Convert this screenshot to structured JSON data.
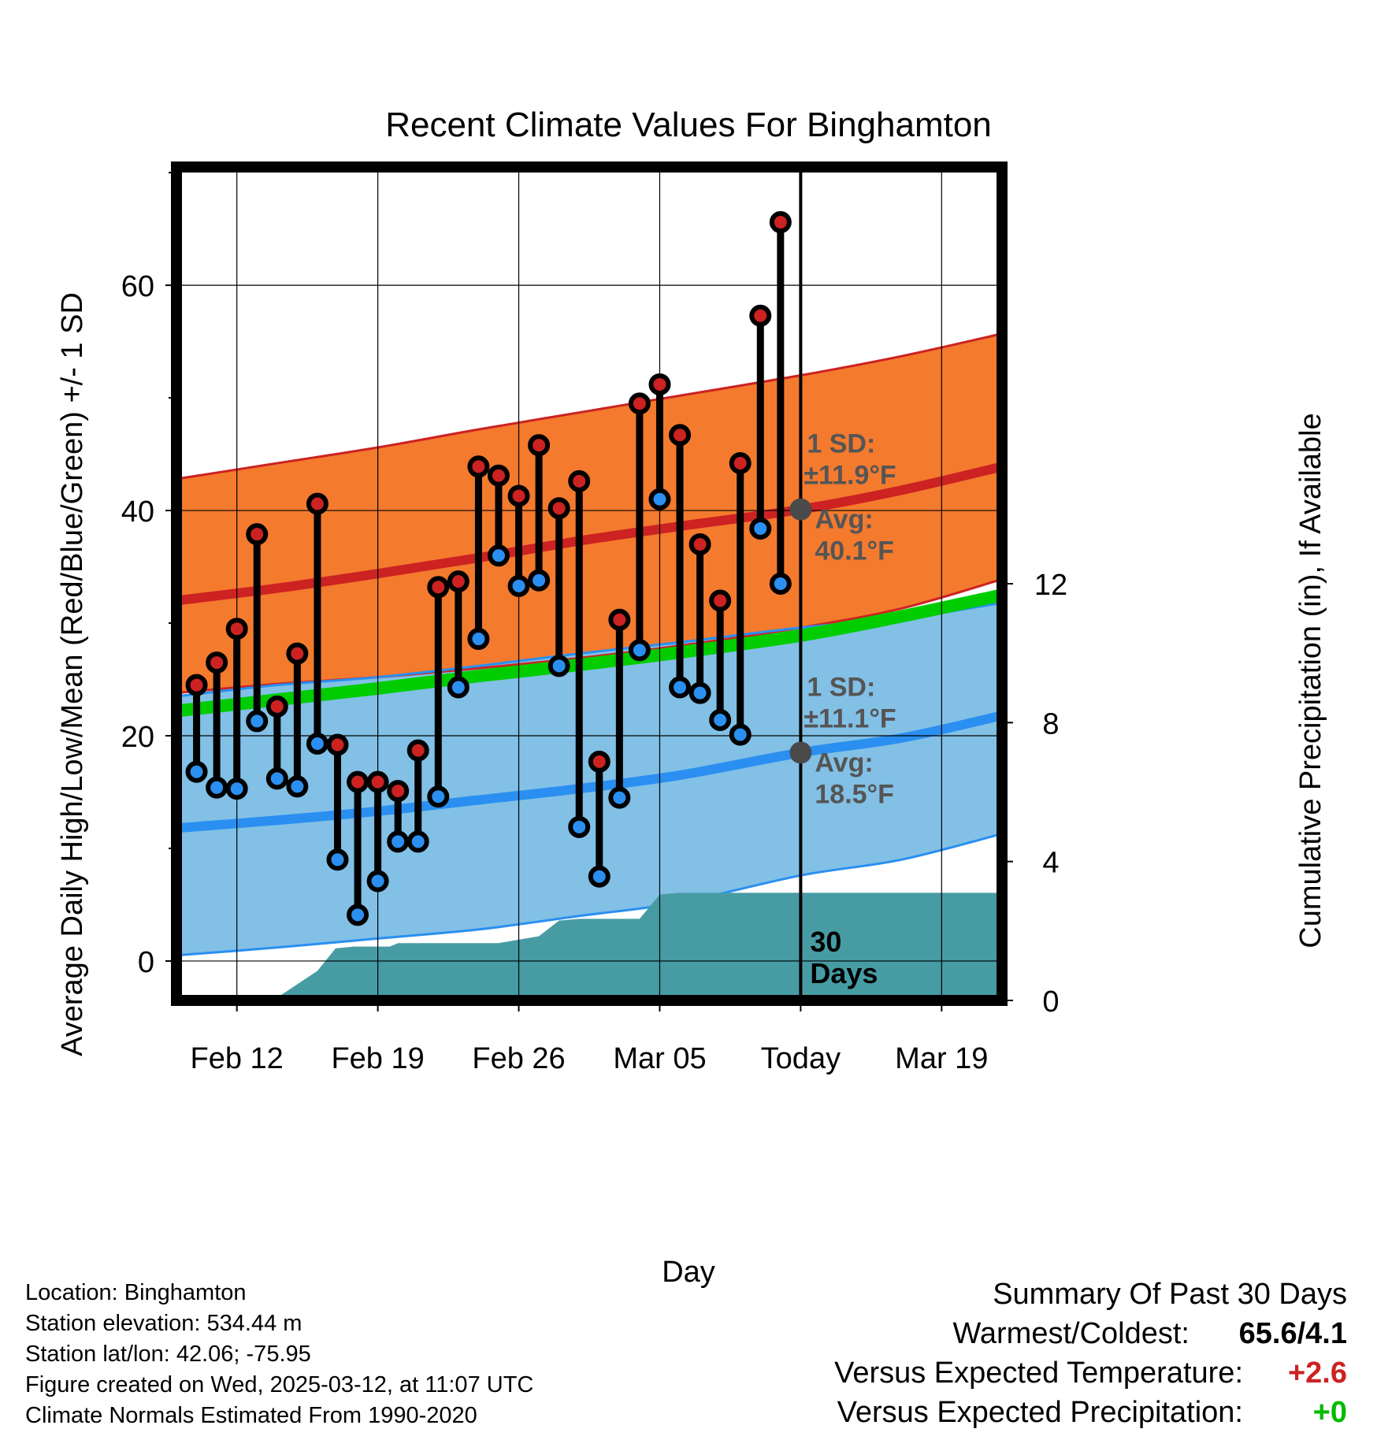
{
  "chart_data": {
    "type": "line",
    "title": "Recent Climate Values For Binghamton",
    "xlabel": "Day",
    "ylabel": "Average Daily High/Low/Mean (Red/Blue/Green) +/- 1 SD",
    "y2label": "Cumulative Precipitation (in), If Available",
    "ylim": [
      -3.5,
      70.5
    ],
    "y_ticks": [
      0,
      20,
      40,
      60
    ],
    "y_minor_ticks": [
      10,
      30,
      50,
      70
    ],
    "y2lim": [
      0,
      24
    ],
    "y2_ticks": [
      0,
      4,
      8,
      12
    ],
    "xlim": [
      0,
      41
    ],
    "x_ticks": [
      {
        "day": 3,
        "label": "Feb 12"
      },
      {
        "day": 10,
        "label": "Feb 19"
      },
      {
        "day": 17,
        "label": "Feb 26"
      },
      {
        "day": 24,
        "label": "Mar 05"
      },
      {
        "day": 31,
        "label": "Today"
      },
      {
        "day": 38,
        "label": "Mar 19"
      }
    ],
    "today_day": 31,
    "today_label": "30 Days",
    "grid": true,
    "normals": {
      "day": [
        0,
        5,
        10,
        15,
        20,
        25,
        31,
        36,
        41
      ],
      "high_avg": [
        32.0,
        33.1,
        34.4,
        35.8,
        37.3,
        38.6,
        40.1,
        41.8,
        43.9
      ],
      "high_upper": [
        42.8,
        44.2,
        45.6,
        47.2,
        48.7,
        50.2,
        52.0,
        53.7,
        55.7
      ],
      "high_lower": [
        23.8,
        24.6,
        25.2,
        26.0,
        26.9,
        28.0,
        29.6,
        31.3,
        33.9
      ],
      "mean_avg": [
        22.2,
        23.2,
        24.2,
        25.3,
        26.3,
        27.4,
        28.9,
        30.6,
        32.5
      ],
      "low_avg": [
        11.8,
        12.5,
        13.3,
        14.3,
        15.3,
        16.5,
        18.5,
        19.8,
        21.8
      ],
      "low_upper": [
        23.5,
        24.5,
        25.2,
        26.2,
        27.3,
        28.3,
        29.6,
        30.4,
        31.8
      ],
      "low_lower": [
        0.5,
        1.2,
        2.0,
        2.8,
        4.0,
        5.2,
        7.6,
        9.0,
        11.3
      ]
    },
    "series": [
      {
        "name": "High",
        "color": "#cc2222",
        "day": [
          1,
          2,
          3,
          4,
          5,
          6,
          7,
          8,
          9,
          10,
          11,
          12,
          13,
          14,
          15,
          16,
          17,
          18,
          19,
          20,
          21,
          22,
          23,
          24,
          25,
          26,
          27,
          28,
          29,
          30
        ],
        "values": [
          24.5,
          26.5,
          29.5,
          37.9,
          22.6,
          27.3,
          40.6,
          19.2,
          15.9,
          15.9,
          15.1,
          18.7,
          33.2,
          33.7,
          43.9,
          43.1,
          41.3,
          45.8,
          40.2,
          42.6,
          17.7,
          30.3,
          49.5,
          51.2,
          46.7,
          37.0,
          32.0,
          44.2,
          57.3,
          65.6
        ]
      },
      {
        "name": "Low",
        "color": "#2a8ff0",
        "day": [
          1,
          2,
          3,
          4,
          5,
          6,
          7,
          8,
          9,
          10,
          11,
          12,
          13,
          14,
          15,
          16,
          17,
          18,
          19,
          20,
          21,
          22,
          23,
          24,
          25,
          26,
          27,
          28,
          29,
          30
        ],
        "values": [
          16.8,
          15.4,
          15.3,
          21.3,
          16.2,
          15.5,
          19.3,
          9.0,
          4.1,
          7.1,
          10.6,
          10.6,
          14.6,
          24.3,
          28.6,
          36.0,
          33.3,
          33.8,
          26.2,
          11.9,
          7.5,
          14.5,
          27.6,
          41.0,
          24.3,
          23.8,
          21.4,
          20.1,
          38.4,
          33.5
        ]
      }
    ],
    "precip_cumulative": {
      "day": [
        0,
        3.9,
        4.9,
        5.1,
        7.0,
        7.9,
        8.8,
        9.6,
        10.6,
        11.0,
        12.0,
        16.0,
        18.0,
        19.0,
        20.0,
        23.0,
        24.0,
        25.0,
        41.0
      ],
      "values": [
        0,
        0,
        0.12,
        0.12,
        0.85,
        1.5,
        1.55,
        1.55,
        1.55,
        1.65,
        1.65,
        1.65,
        1.85,
        2.3,
        2.35,
        2.35,
        3.05,
        3.1,
        3.1
      ]
    },
    "annotations": {
      "high_sd": "1 SD:",
      "high_sd_value": "±11.9°F",
      "high_avg_label": "Avg:",
      "high_avg_value": "40.1°F",
      "low_sd": "1 SD:",
      "low_sd_value": "±11.1°F",
      "low_avg_label": "Avg:",
      "low_avg_value": "18.5°F"
    },
    "colors": {
      "high_band": "#f47a2e",
      "high_band_edge": "#cc2222",
      "high_line": "#cc2222",
      "low_band": "#82c0e6",
      "low_band_edge": "#2a8ff0",
      "low_line": "#2a8ff0",
      "mean_line": "#00cc00",
      "precip": "#479ca4",
      "annotation": "#555555"
    }
  },
  "footer": {
    "location": "Location: Binghamton",
    "elevation": "Station elevation: 534.44 m",
    "latlon": "Station lat/lon: 42.06; -75.95",
    "created": "Figure created on Wed, 2025-03-12, at 11:07 UTC",
    "normals": "Climate Normals Estimated From 1990-2020"
  },
  "summary": {
    "title": "Summary Of Past 30 Days",
    "warmest_coldest_label": "Warmest/Coldest:",
    "warmest_coldest_value": "65.6/4.1",
    "temp_label": "Versus Expected Temperature:",
    "temp_value": "+2.6",
    "temp_color": "#cc2222",
    "precip_label": "Versus Expected Precipitation:",
    "precip_value": "+0",
    "precip_color": "#00bb00"
  }
}
